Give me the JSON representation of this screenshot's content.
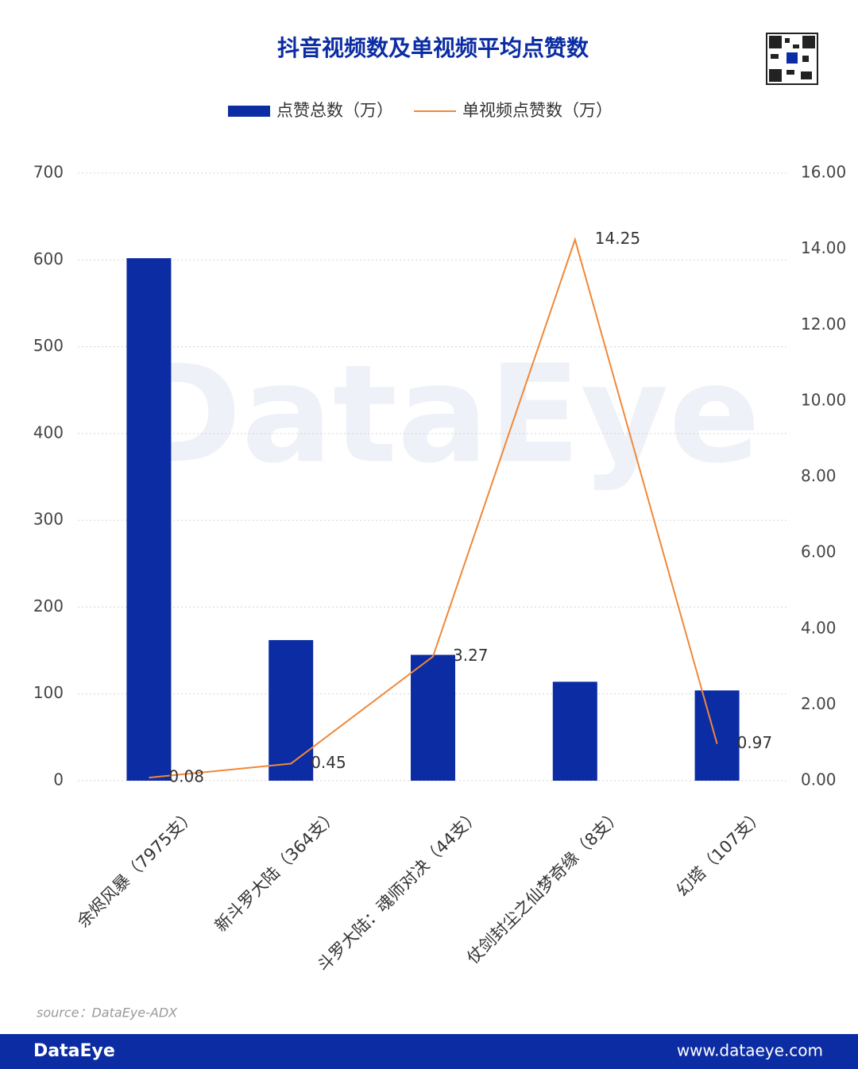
{
  "chart_data": {
    "type": "bar",
    "title": "抖音视频数及单视频平均点赞数",
    "categories": [
      "余烬风暴（7975支）",
      "新斗罗大陆（364支）",
      "斗罗大陆：魂师对决（44支）",
      "仗剑封尘之仙梦奇缘（8支）",
      "幻塔（107支）"
    ],
    "series": [
      {
        "name": "点赞总数（万）",
        "type": "bar",
        "color": "#0b2ca3",
        "values": [
          602,
          162,
          145,
          114,
          104
        ]
      },
      {
        "name": "单视频点赞数（万）",
        "type": "line",
        "axis": "y2",
        "color": "#f0883a",
        "values": [
          0.08,
          0.45,
          3.27,
          14.25,
          0.97
        ]
      }
    ],
    "ylim": [
      0,
      700
    ],
    "yticks": [
      0,
      100,
      200,
      300,
      400,
      500,
      600,
      700
    ],
    "y2lim": [
      0,
      16
    ],
    "y2ticks": [
      {
        "value": 0,
        "label": "0.00"
      },
      {
        "value": 2,
        "label": "2.00"
      },
      {
        "value": 4,
        "label": "4.00"
      },
      {
        "value": 6,
        "label": "6.00"
      },
      {
        "value": 8,
        "label": "8.00"
      },
      {
        "value": 10,
        "label": "10.00"
      },
      {
        "value": 12,
        "label": "12.00"
      },
      {
        "value": 14,
        "label": "14.00"
      },
      {
        "value": 16,
        "label": "16.00"
      }
    ],
    "grid": true,
    "legend": "top"
  },
  "watermark": "DataEye",
  "source": "source：DataEye-ADX",
  "footer": {
    "brand": "DataEye",
    "url": "www.dataeye.com"
  }
}
